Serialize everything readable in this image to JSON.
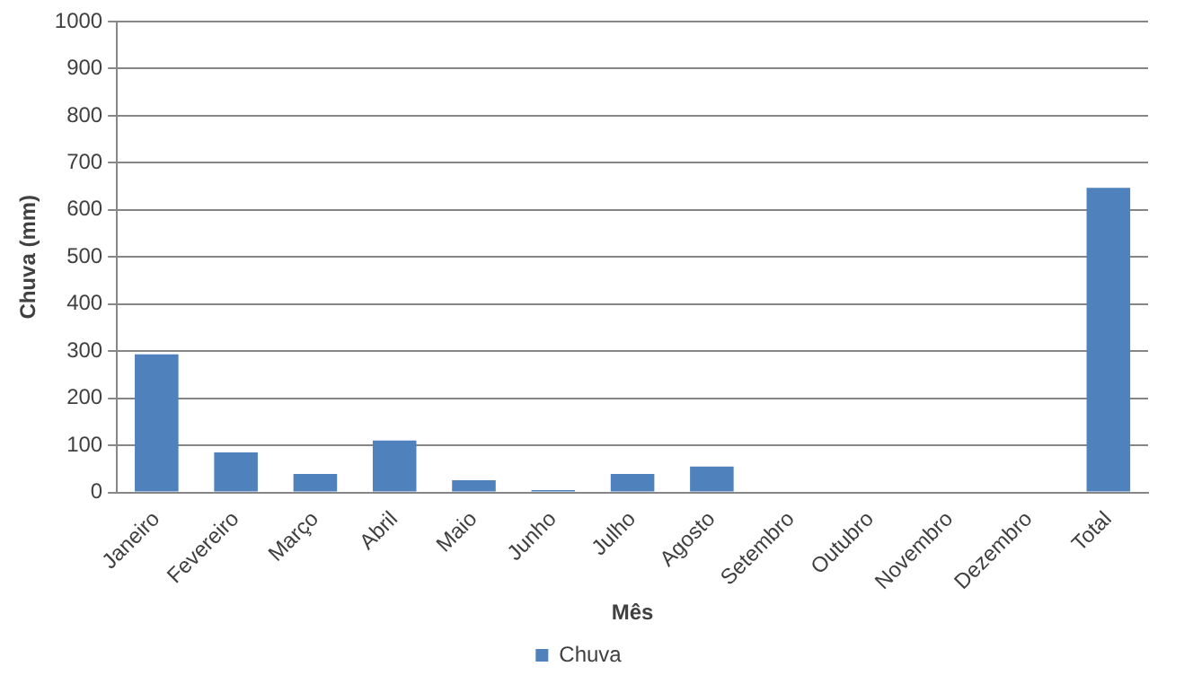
{
  "chart_data": {
    "type": "bar",
    "xlabel": "Mês",
    "ylabel": "Chuva (mm)",
    "categories": [
      "Janeiro",
      "Fevereiro",
      "Março",
      "Abril",
      "Maio",
      "Junho",
      "Julho",
      "Agosto",
      "Setembro",
      "Outubro",
      "Novembro",
      "Dezembro",
      "Total"
    ],
    "series": [
      {
        "name": "Chuva",
        "color": "#4f81bd",
        "values": [
          293,
          85,
          39,
          110,
          26,
          5,
          39,
          55,
          0,
          0,
          0,
          0,
          647
        ]
      }
    ],
    "ylim": [
      0,
      1000
    ],
    "yticks": [
      0,
      100,
      200,
      300,
      400,
      500,
      600,
      700,
      800,
      900,
      1000
    ],
    "grid": "y",
    "legend": "bottom"
  }
}
